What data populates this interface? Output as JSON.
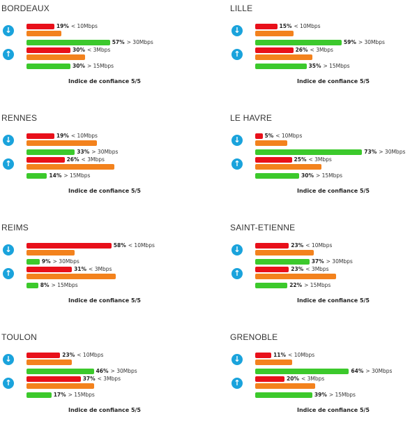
{
  "chart_data": [
    {
      "type": "bar",
      "title": "BORDEAUX",
      "download": {
        "icon": "arrow-down-icon",
        "slow": {
          "value": 19,
          "label": "< 10Mbps"
        },
        "mid": {
          "value": 24
        },
        "fast": {
          "value": 57,
          "label": "> 30Mbps"
        }
      },
      "upload": {
        "icon": "arrow-up-icon",
        "slow": {
          "value": 30,
          "label": "< 3Mbps"
        },
        "mid": {
          "value": 40
        },
        "fast": {
          "value": 30,
          "label": "> 15Mbps"
        }
      },
      "confidence": "Indice de confiance 5/5"
    },
    {
      "type": "bar",
      "title": "LILLE",
      "download": {
        "icon": "arrow-down-icon",
        "slow": {
          "value": 15,
          "label": "< 10Mbps"
        },
        "mid": {
          "value": 26
        },
        "fast": {
          "value": 59,
          "label": "> 30Mbps"
        }
      },
      "upload": {
        "icon": "arrow-up-icon",
        "slow": {
          "value": 26,
          "label": "< 3Mbps"
        },
        "mid": {
          "value": 39
        },
        "fast": {
          "value": 35,
          "label": "> 15Mbps"
        }
      },
      "confidence": "Indice de confiance 5/5"
    },
    {
      "type": "bar",
      "title": "RENNES",
      "download": {
        "icon": "arrow-down-icon",
        "slow": {
          "value": 19,
          "label": "< 10Mbps"
        },
        "mid": {
          "value": 48
        },
        "fast": {
          "value": 33,
          "label": "> 30Mbps"
        }
      },
      "upload": {
        "icon": "arrow-up-icon",
        "slow": {
          "value": 26,
          "label": "< 3Mbps"
        },
        "mid": {
          "value": 60
        },
        "fast": {
          "value": 14,
          "label": "> 15Mbps"
        }
      },
      "confidence": "Indice de confiance 5/5"
    },
    {
      "type": "bar",
      "title": "LE HAVRE",
      "download": {
        "icon": "arrow-down-icon",
        "slow": {
          "value": 5,
          "label": "< 10Mbps"
        },
        "mid": {
          "value": 22
        },
        "fast": {
          "value": 73,
          "label": "> 30Mbps"
        }
      },
      "upload": {
        "icon": "arrow-up-icon",
        "slow": {
          "value": 25,
          "label": "< 3Mbps"
        },
        "mid": {
          "value": 45
        },
        "fast": {
          "value": 30,
          "label": "> 15Mbps"
        }
      },
      "confidence": "Indice de confiance 5/5"
    },
    {
      "type": "bar",
      "title": "REIMS",
      "download": {
        "icon": "arrow-down-icon",
        "slow": {
          "value": 58,
          "label": "< 10Mbps"
        },
        "mid": {
          "value": 33
        },
        "fast": {
          "value": 9,
          "label": "> 30Mbps"
        }
      },
      "upload": {
        "icon": "arrow-up-icon",
        "slow": {
          "value": 31,
          "label": "< 3Mbps"
        },
        "mid": {
          "value": 61
        },
        "fast": {
          "value": 8,
          "label": "> 15Mbps"
        }
      },
      "confidence": "Indice de confiance 5/5"
    },
    {
      "type": "bar",
      "title": "SAINT-ETIENNE",
      "download": {
        "icon": "arrow-down-icon",
        "slow": {
          "value": 23,
          "label": "< 10Mbps"
        },
        "mid": {
          "value": 40
        },
        "fast": {
          "value": 37,
          "label": "> 30Mbps"
        }
      },
      "upload": {
        "icon": "arrow-up-icon",
        "slow": {
          "value": 23,
          "label": "< 3Mbps"
        },
        "mid": {
          "value": 55
        },
        "fast": {
          "value": 22,
          "label": "> 15Mbps"
        }
      },
      "confidence": "Indice de confiance 5/5"
    },
    {
      "type": "bar",
      "title": "TOULON",
      "download": {
        "icon": "arrow-down-icon",
        "slow": {
          "value": 23,
          "label": "< 10Mbps"
        },
        "mid": {
          "value": 31
        },
        "fast": {
          "value": 46,
          "label": "> 30Mbps"
        }
      },
      "upload": {
        "icon": "arrow-up-icon",
        "slow": {
          "value": 37,
          "label": "< 3Mbps"
        },
        "mid": {
          "value": 46
        },
        "fast": {
          "value": 17,
          "label": "> 15Mbps"
        }
      },
      "confidence": "Indice de confiance 5/5"
    },
    {
      "type": "bar",
      "title": "GRENOBLE",
      "download": {
        "icon": "arrow-down-icon",
        "slow": {
          "value": 11,
          "label": "< 10Mbps"
        },
        "mid": {
          "value": 25
        },
        "fast": {
          "value": 64,
          "label": "> 30Mbps"
        }
      },
      "upload": {
        "icon": "arrow-up-icon",
        "slow": {
          "value": 20,
          "label": "< 3Mbps"
        },
        "mid": {
          "value": 41
        },
        "fast": {
          "value": 39,
          "label": "> 15Mbps"
        }
      },
      "confidence": "Indice de confiance 5/5"
    }
  ],
  "colors": {
    "slow": "#e8101a",
    "mid": "#f3821d",
    "fast": "#3cc92c",
    "icon": "#1aa3dc"
  }
}
